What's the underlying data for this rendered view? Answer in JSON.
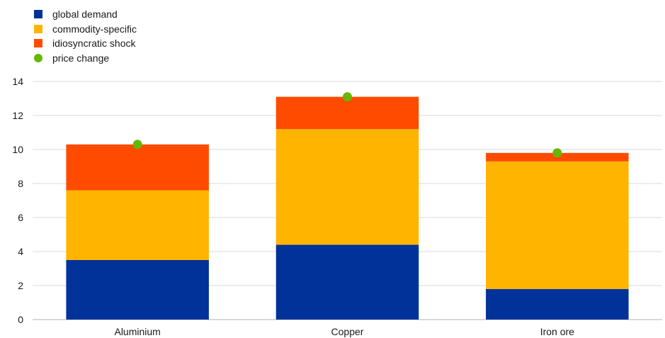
{
  "chart_data": {
    "type": "bar",
    "stacked": true,
    "categories": [
      "Aluminium",
      "Copper",
      "Iron ore"
    ],
    "series": [
      {
        "name": "global demand",
        "color": "#003299",
        "values": [
          3.5,
          4.4,
          1.8
        ]
      },
      {
        "name": "commodity-specific",
        "color": "#FFB400",
        "values": [
          4.1,
          6.8,
          7.5
        ]
      },
      {
        "name": "idiosyncratic shock",
        "color": "#FF4B00",
        "values": [
          2.7,
          1.9,
          0.5
        ]
      }
    ],
    "markers": {
      "name": "price change",
      "color": "#65B800",
      "values": [
        10.3,
        13.1,
        9.8
      ]
    },
    "title": "",
    "xlabel": "",
    "ylabel": "",
    "ylim": [
      0,
      14
    ],
    "yticks": [
      0,
      2,
      4,
      6,
      8,
      10,
      12,
      14
    ],
    "grid": true,
    "legend_position": "top-left"
  }
}
